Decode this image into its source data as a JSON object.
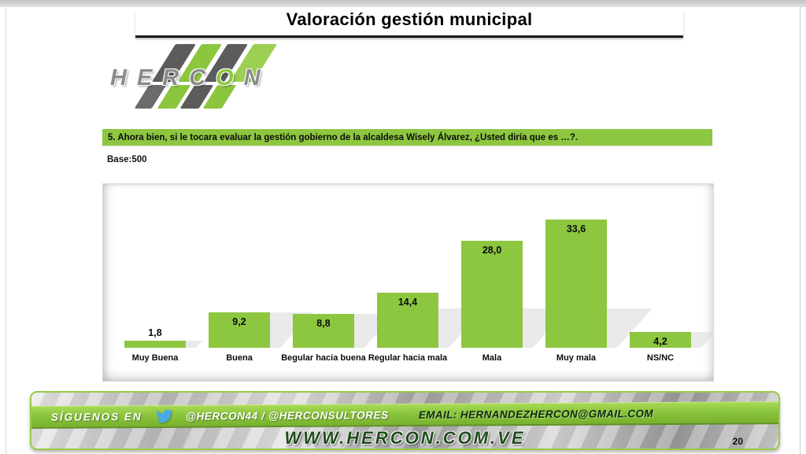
{
  "page": {
    "number": "20"
  },
  "header": {
    "title": "Valoración gestión municipal"
  },
  "logo": {
    "part1": "HERC",
    "part2": "O",
    "part3": "N"
  },
  "question": {
    "text": "5. Ahora bien, si le tocara evaluar la gestión gobierno de la alcaldesa Wisely Álvarez, ¿Usted diría que es …?."
  },
  "base": {
    "label": "Base:500"
  },
  "chart_data": {
    "type": "bar",
    "title": "",
    "xlabel": "",
    "ylabel": "",
    "categories": [
      "Muy Buena",
      "Buena",
      "Begular hacia buena",
      "Regular hacia mala",
      "Mala",
      "Muy mala",
      "NS/NC"
    ],
    "values": [
      1.8,
      9.2,
      8.8,
      14.4,
      28.0,
      33.6,
      4.2
    ],
    "value_labels": [
      "1,8",
      "9,2",
      "8,8",
      "14,4",
      "28,0",
      "33,6",
      "4,2"
    ],
    "bar_color": "#8dc63f",
    "ylim": [
      0,
      36
    ],
    "grid": false,
    "legend": "none",
    "value_label_position": "inside-top, above bar when bar is too short"
  },
  "footer": {
    "follow_label": "SÍGUENOS EN",
    "twitter_icon": "twitter-bird",
    "handles": "@HERCON44  /  @HERCONSULTORES",
    "email": "EMAIL: HERNANDEZHERCON@GMAIL.COM",
    "website": "WWW.HERCON.COM.VE",
    "band_color": "#8cc63f",
    "twitter_blue": "#4aa9e8"
  },
  "colors": {
    "accent_green": "#8dc63f",
    "logo_gray": "#5c5c5c",
    "website_green": "#1f4d1a"
  }
}
